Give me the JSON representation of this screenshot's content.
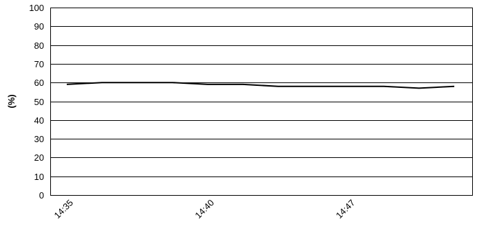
{
  "chart_data": {
    "type": "line",
    "title": "",
    "xlabel": "",
    "ylabel": "(%)",
    "ylim": [
      0,
      100
    ],
    "yticks": [
      0,
      10,
      20,
      30,
      40,
      50,
      60,
      70,
      80,
      90,
      100
    ],
    "grid": true,
    "legend": "none",
    "x_tick_labels": [
      "14:35",
      "14:40",
      "14:47"
    ],
    "x_tick_positions": [
      0,
      4,
      8
    ],
    "x_count": 12,
    "series": [
      {
        "color": "#000000",
        "values": [
          59,
          60,
          60,
          60,
          59,
          59,
          58,
          58,
          58,
          58,
          57,
          58
        ]
      }
    ]
  }
}
